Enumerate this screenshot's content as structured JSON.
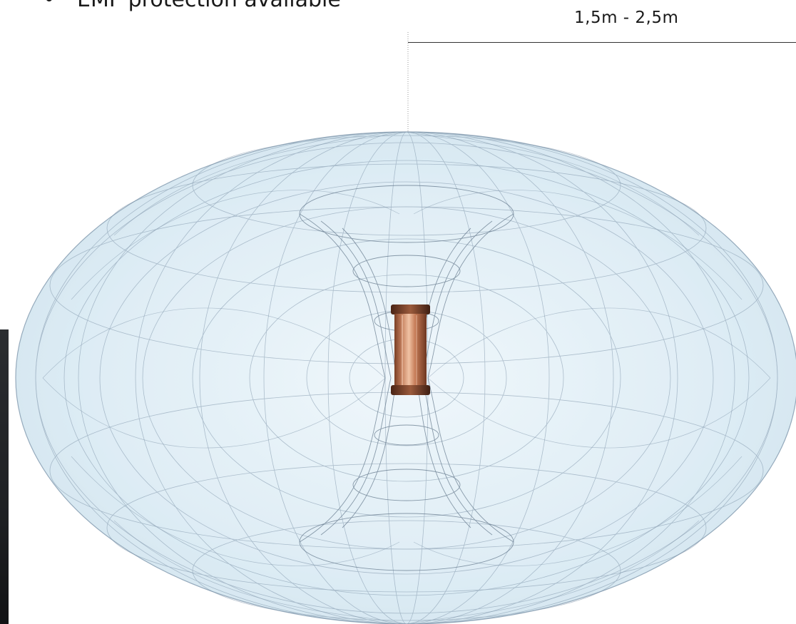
{
  "header": {
    "bullet_glyph": "•",
    "bullet_text": "EMF protection available"
  },
  "dimension": {
    "label": "1,5m - 2,5m"
  },
  "diagram": {
    "field_fill": "#dcecf5",
    "wire_color": "#7d93a8",
    "coil_color": "#b9714f"
  }
}
